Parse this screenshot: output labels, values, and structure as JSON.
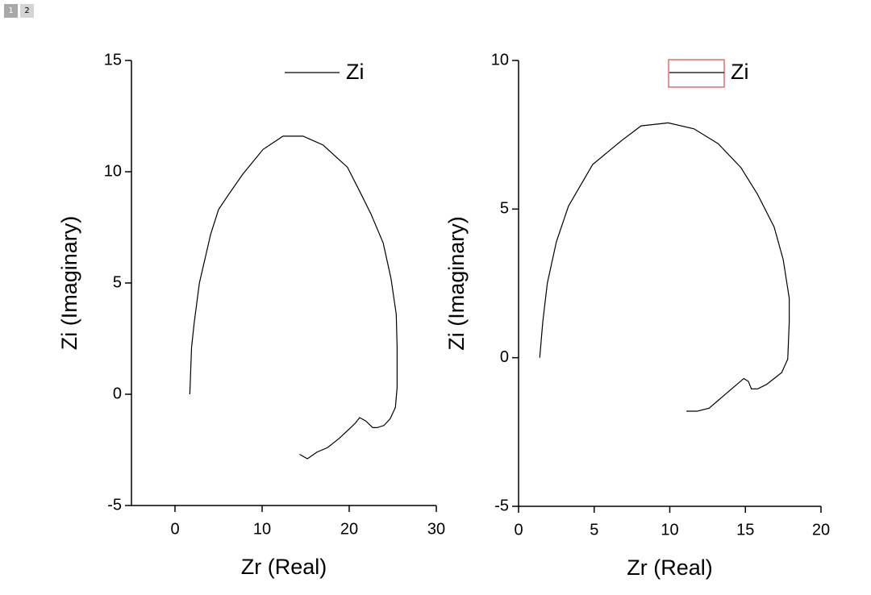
{
  "tabs": [
    "1",
    "2"
  ],
  "chart_data": [
    {
      "type": "line",
      "xlabel": "Zr (Real)",
      "ylabel": "Zi (Imaginary)",
      "xlim": [
        -5,
        30
      ],
      "xticks": [
        0,
        10,
        20,
        30
      ],
      "ylim": [
        -5,
        15
      ],
      "yticks": [
        -5,
        0,
        5,
        10,
        15
      ],
      "legend": "top-right",
      "series": [
        {
          "name": "Zi",
          "color": "#000000",
          "x": [
            1.7,
            1.9,
            2.2,
            2.8,
            4.1,
            5.0,
            6.2,
            7.8,
            10.1,
            12.4,
            14.7,
            17.0,
            19.8,
            21.1,
            22.5,
            23.9,
            24.8,
            25.4,
            25.5,
            25.5,
            25.3,
            24.7,
            24.0,
            23.2,
            22.7,
            21.9,
            21.2,
            20.7,
            19.9,
            18.8,
            17.5,
            16.3,
            15.2,
            14.3
          ],
          "values": [
            0,
            2.1,
            3.2,
            5.0,
            7.2,
            8.3,
            9.0,
            9.9,
            11.0,
            11.6,
            11.6,
            11.2,
            10.2,
            9.2,
            8.1,
            6.8,
            5.2,
            3.6,
            2.1,
            0.3,
            -0.6,
            -1.1,
            -1.4,
            -1.5,
            -1.5,
            -1.2,
            -1.05,
            -1.3,
            -1.6,
            -2.0,
            -2.4,
            -2.6,
            -2.9,
            -2.7
          ]
        }
      ]
    },
    {
      "type": "line",
      "xlabel": "Zr (Real)",
      "ylabel": "Zi (Imaginary)",
      "xlim": [
        0,
        20
      ],
      "xticks": [
        0,
        5,
        10,
        15,
        20
      ],
      "ylim": [
        -5,
        10
      ],
      "yticks": [
        -5,
        0,
        5,
        10
      ],
      "legend": "top-right",
      "series": [
        {
          "name": "Zi",
          "color": "#000000",
          "x": [
            1.4,
            1.6,
            1.9,
            2.5,
            3.3,
            4.9,
            6.8,
            8.1,
            9.9,
            11.6,
            13.2,
            14.7,
            15.8,
            16.9,
            17.5,
            17.9,
            17.9,
            17.8,
            17.4,
            16.9,
            16.4,
            15.8,
            15.4,
            15.2,
            14.9,
            14.2,
            13.4,
            12.6,
            11.8,
            11.1
          ],
          "values": [
            0,
            1.2,
            2.5,
            3.9,
            5.1,
            6.5,
            7.3,
            7.8,
            7.9,
            7.7,
            7.2,
            6.4,
            5.5,
            4.4,
            3.3,
            2.0,
            1.2,
            -0.05,
            -0.5,
            -0.7,
            -0.9,
            -1.05,
            -1.05,
            -0.8,
            -0.7,
            -1.0,
            -1.35,
            -1.7,
            -1.8,
            -1.8
          ]
        }
      ]
    }
  ]
}
